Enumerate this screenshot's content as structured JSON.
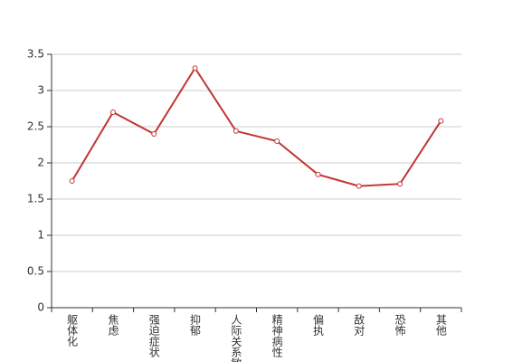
{
  "chart_data": {
    "type": "line",
    "categories": [
      "躯体化",
      "焦虑",
      "强迫症状",
      "抑郁",
      "人际关系敏感",
      "精神病性",
      "偏执",
      "敌对",
      "恐怖",
      "其他"
    ],
    "values": [
      1.75,
      2.7,
      2.4,
      3.31,
      2.44,
      2.3,
      1.84,
      1.68,
      1.71,
      2.58
    ],
    "color": "#c23531",
    "ylim": [
      0,
      3.5
    ],
    "yticks": [
      0,
      0.5,
      1,
      1.5,
      2,
      2.5,
      3,
      3.5
    ],
    "grid": true
  }
}
